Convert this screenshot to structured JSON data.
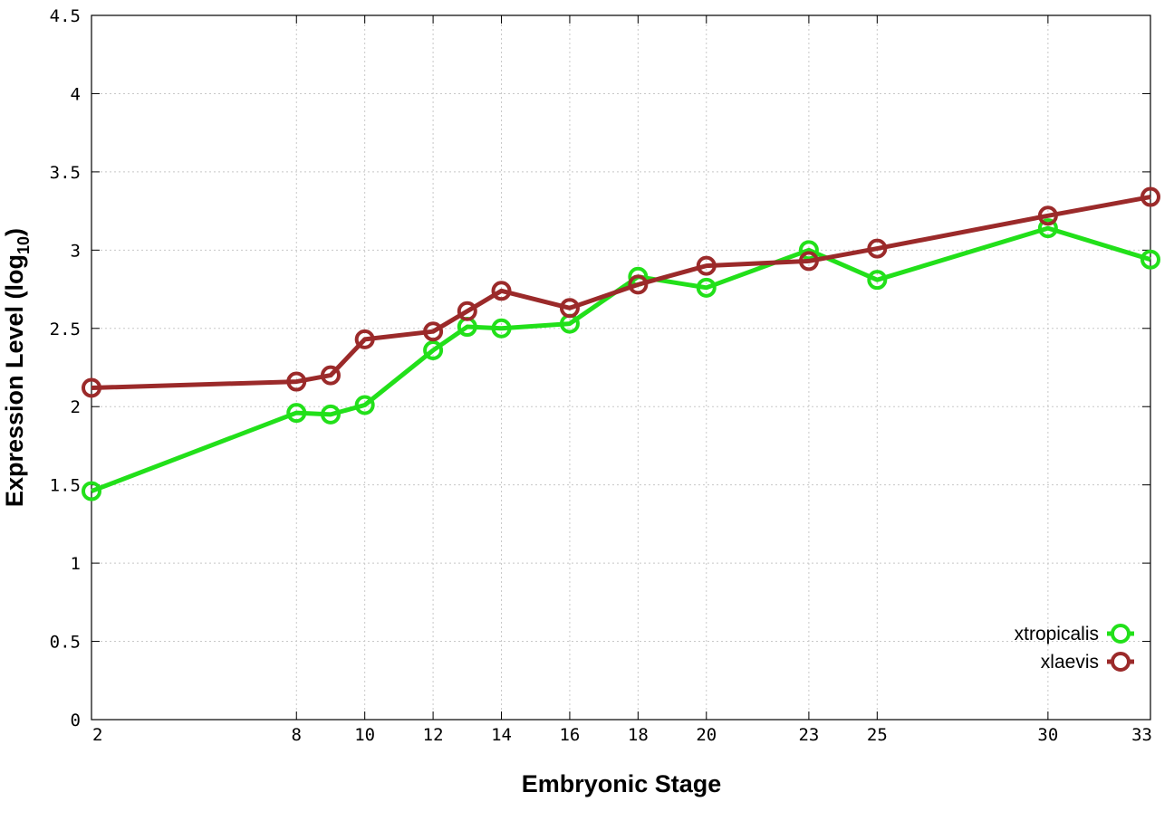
{
  "chart_data": {
    "type": "line",
    "xlabel": "Embryonic Stage",
    "ylabel_main": "Expression Level (log",
    "ylabel_sub": "10",
    "ylabel_close": ")",
    "xlim": [
      2,
      33
    ],
    "ylim": [
      0,
      4.5
    ],
    "x_ticks": [
      2,
      8,
      10,
      12,
      14,
      16,
      18,
      20,
      23,
      25,
      30,
      33
    ],
    "y_ticks": [
      0,
      0.5,
      1,
      1.5,
      2,
      2.5,
      3,
      3.5,
      4,
      4.5
    ],
    "x_tick_labels": [
      "2",
      "8",
      "10",
      "12",
      "14",
      "16",
      "18",
      "20",
      "23",
      "25",
      "30",
      "33"
    ],
    "y_tick_labels": [
      "0",
      "0.5",
      "1",
      "1.5",
      "2",
      "2.5",
      "3",
      "3.5",
      "4",
      "4.5"
    ],
    "grid": true,
    "legend_position": "bottom-right",
    "series": [
      {
        "name": "xtropicalis",
        "color": "#22e01a",
        "x": [
          2,
          8,
          9,
          10,
          12,
          13,
          14,
          16,
          18,
          20,
          23,
          25,
          30,
          33
        ],
        "y": [
          1.46,
          1.96,
          1.95,
          2.01,
          2.36,
          2.51,
          2.5,
          2.53,
          2.83,
          2.76,
          3.0,
          2.81,
          3.14,
          2.94
        ]
      },
      {
        "name": "xlaevis",
        "color": "#9b2a2a",
        "x": [
          2,
          8,
          9,
          10,
          12,
          13,
          14,
          16,
          18,
          20,
          23,
          25,
          30,
          33
        ],
        "y": [
          2.12,
          2.16,
          2.2,
          2.43,
          2.48,
          2.61,
          2.74,
          2.63,
          2.78,
          2.9,
          2.93,
          3.01,
          3.22,
          3.34
        ]
      }
    ]
  }
}
